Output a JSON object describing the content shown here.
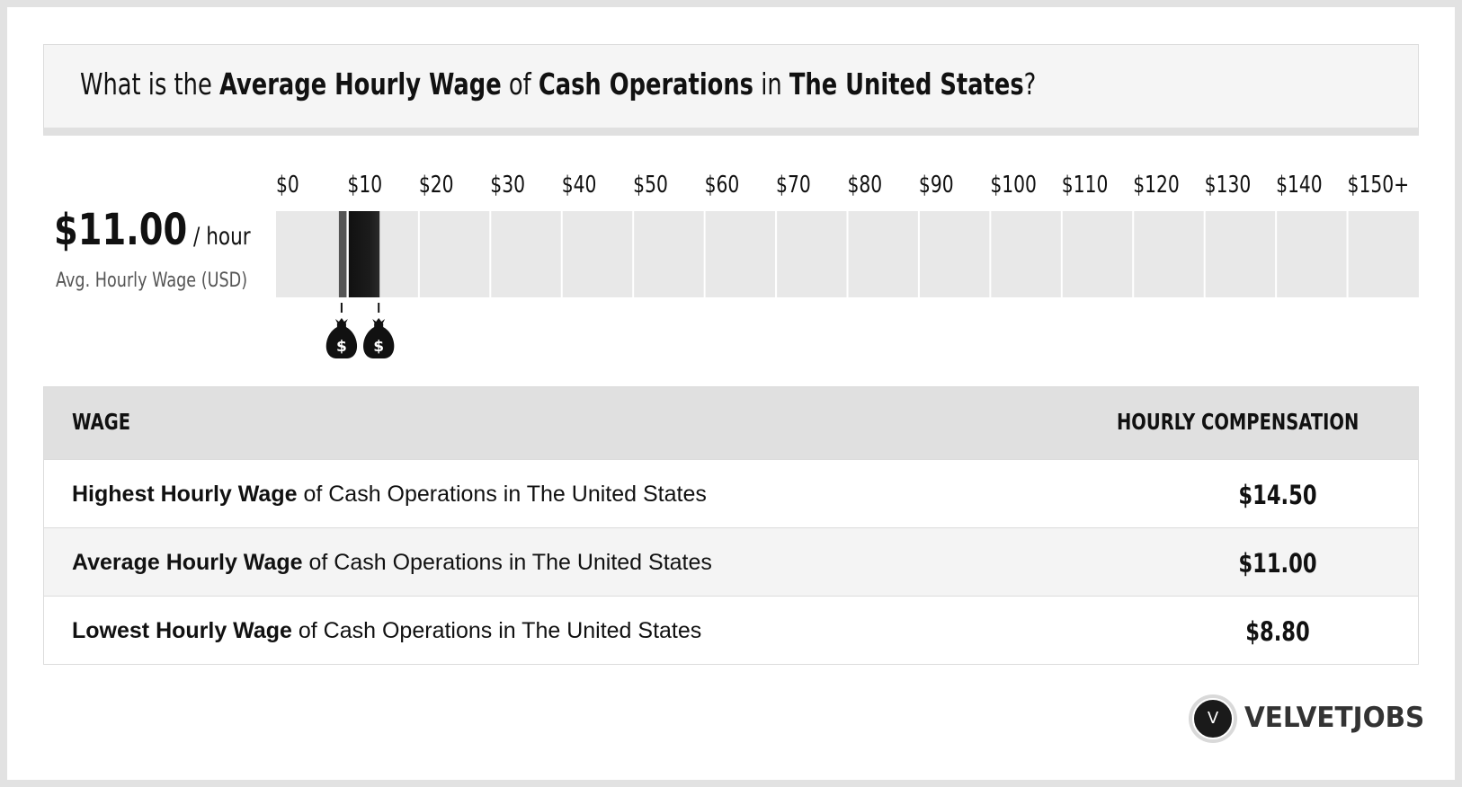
{
  "title": {
    "prefix": "What is the ",
    "metric": "Average Hourly Wage",
    "of": " of ",
    "job": "Cash Operations",
    "in": " in ",
    "location": "The United States",
    "suffix": "?"
  },
  "summary": {
    "value": "$11.00",
    "unit": " / hour",
    "caption": "Avg. Hourly Wage (USD)"
  },
  "chart_data": {
    "type": "bar",
    "tick_labels": [
      "$0",
      "$10",
      "$20",
      "$30",
      "$40",
      "$50",
      "$60",
      "$70",
      "$80",
      "$90",
      "$100",
      "$110",
      "$120",
      "$130",
      "$140",
      "$150+"
    ],
    "xlim": [
      0,
      150
    ],
    "range_low": 8.8,
    "range_average": 11.0,
    "range_high": 14.5,
    "markers": [
      {
        "name": "lowest",
        "value": 8.8,
        "icon": "money-bag-icon"
      },
      {
        "name": "highest",
        "value": 14.5,
        "icon": "money-bag-icon"
      }
    ],
    "marker_symbol": "$",
    "colors": {
      "track": "#e8e8e8",
      "bar_dark": "#111111",
      "bar_light": "#555555",
      "grid": "#ffffff"
    }
  },
  "table": {
    "headers": {
      "wage": "WAGE",
      "comp": "HOURLY COMPENSATION"
    },
    "rows": [
      {
        "bold": "Highest Hourly Wage",
        "rest": " of Cash Operations in The United States",
        "value": "$14.50"
      },
      {
        "bold": "Average Hourly Wage",
        "rest": " of Cash Operations in The United States",
        "value": "$11.00"
      },
      {
        "bold": "Lowest Hourly Wage",
        "rest": " of Cash Operations in The United States",
        "value": "$8.80"
      }
    ]
  },
  "logo": {
    "mark": "V",
    "text": "VELVETJOBS"
  }
}
